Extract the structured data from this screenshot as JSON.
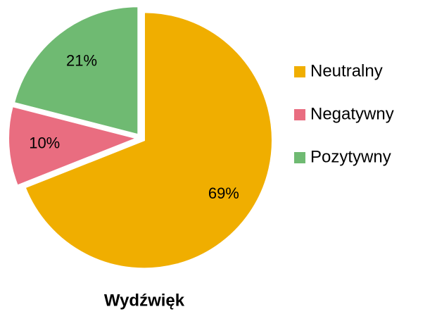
{
  "chart_data": {
    "type": "pie",
    "title": "Wydźwięk",
    "categories": [
      "Neutralny",
      "Negatywny",
      "Pozytywny"
    ],
    "values": [
      69,
      10,
      21
    ],
    "value_labels": [
      "69%",
      "10%",
      "21%"
    ],
    "colors": [
      "#f0ae00",
      "#e96d80",
      "#6fba72"
    ],
    "legend": "right"
  }
}
